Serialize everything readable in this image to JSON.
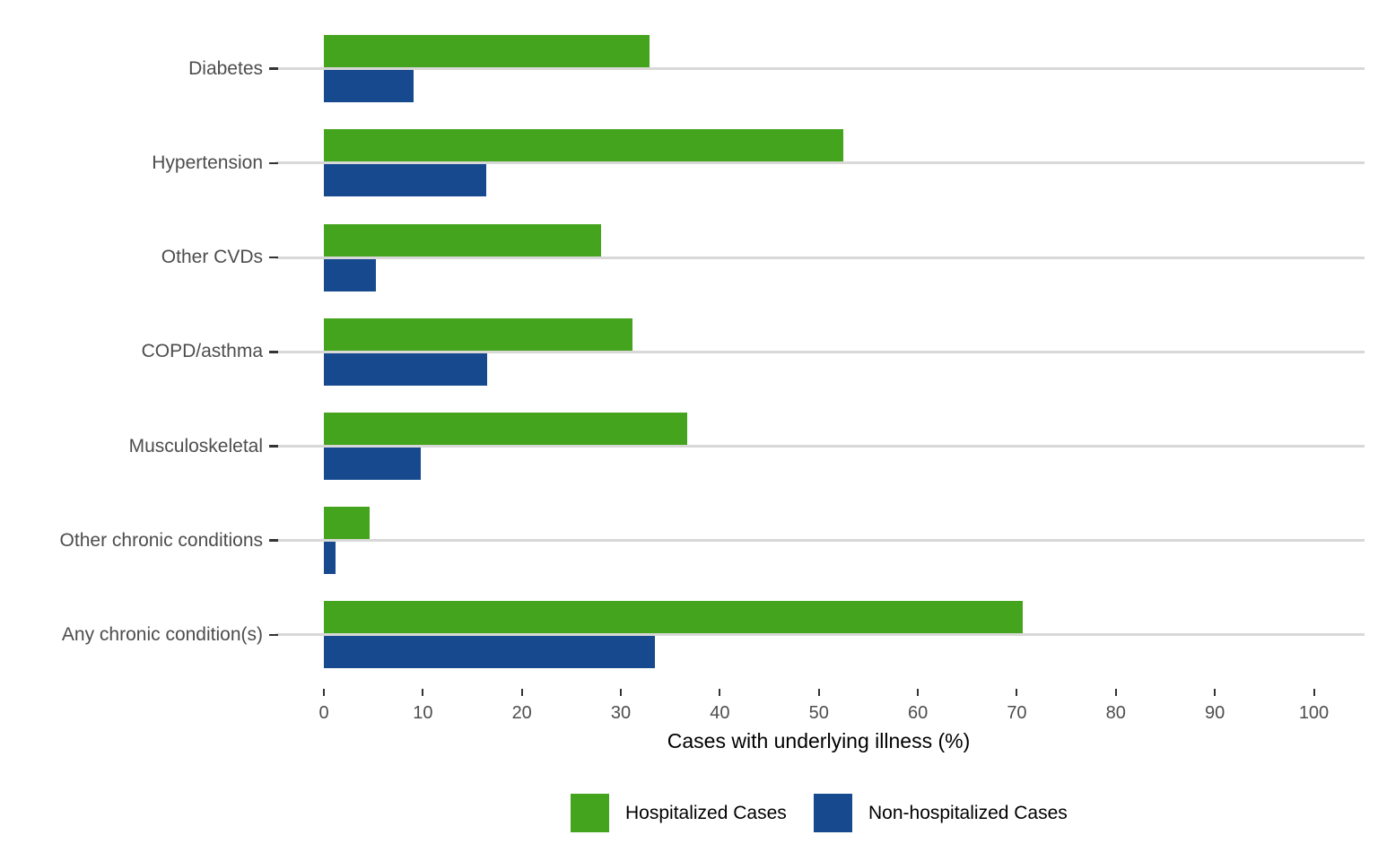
{
  "chart_data": {
    "type": "bar",
    "orientation": "horizontal",
    "title": "",
    "xlabel": "Cases with underlying illness (%)",
    "ylabel": "",
    "xlim": [
      0,
      105
    ],
    "x_ticks": [
      0,
      10,
      20,
      30,
      40,
      50,
      60,
      70,
      80,
      90,
      100
    ],
    "grid": "horizontal gridline at each category",
    "legend_position": "bottom",
    "categories": [
      "Diabetes",
      "Hypertension",
      "Other CVDs",
      "COPD/asthma",
      "Musculoskeletal",
      "Other chronic conditions",
      "Any chronic condition(s)"
    ],
    "series": [
      {
        "name": "Hospitalized Cases",
        "color": "#45a41d",
        "values": [
          32.9,
          52.5,
          28.0,
          31.2,
          36.7,
          4.6,
          70.6
        ]
      },
      {
        "name": "Non-hospitalized Cases",
        "color": "#17498f",
        "values": [
          9.1,
          16.4,
          5.3,
          16.5,
          9.8,
          1.2,
          33.4
        ]
      }
    ]
  }
}
